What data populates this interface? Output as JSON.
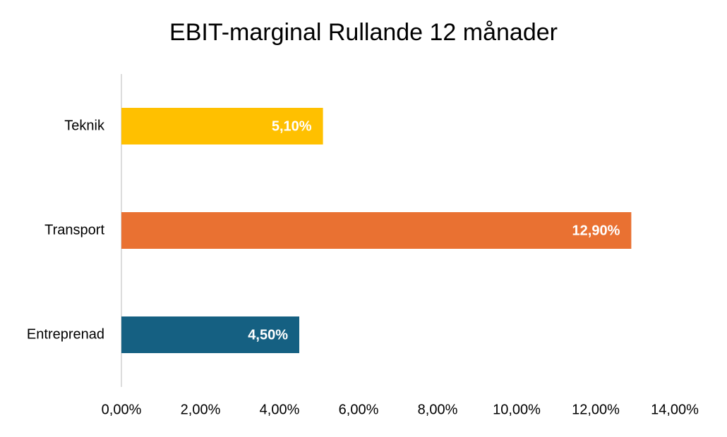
{
  "chart_data": {
    "type": "hbar",
    "title": "EBIT-marginal Rullande 12 månader",
    "categories": [
      "Teknik",
      "Transport",
      "Entreprenad"
    ],
    "values": [
      5.1,
      12.9,
      4.5
    ],
    "value_labels": [
      "5,10%",
      "12,90%",
      "4,50%"
    ],
    "colors": [
      "#FFC000",
      "#E97132",
      "#156082"
    ],
    "xlim": [
      0,
      14
    ],
    "xticks": [
      {
        "value": 0,
        "label": "0,00%"
      },
      {
        "value": 2,
        "label": "2,00%"
      },
      {
        "value": 4,
        "label": "4,00%"
      },
      {
        "value": 6,
        "label": "6,00%"
      },
      {
        "value": 8,
        "label": "8,00%"
      },
      {
        "value": 10,
        "label": "10,00%"
      },
      {
        "value": 12,
        "label": "12,00%"
      },
      {
        "value": 14,
        "label": "14,00%"
      }
    ],
    "grid": false
  }
}
